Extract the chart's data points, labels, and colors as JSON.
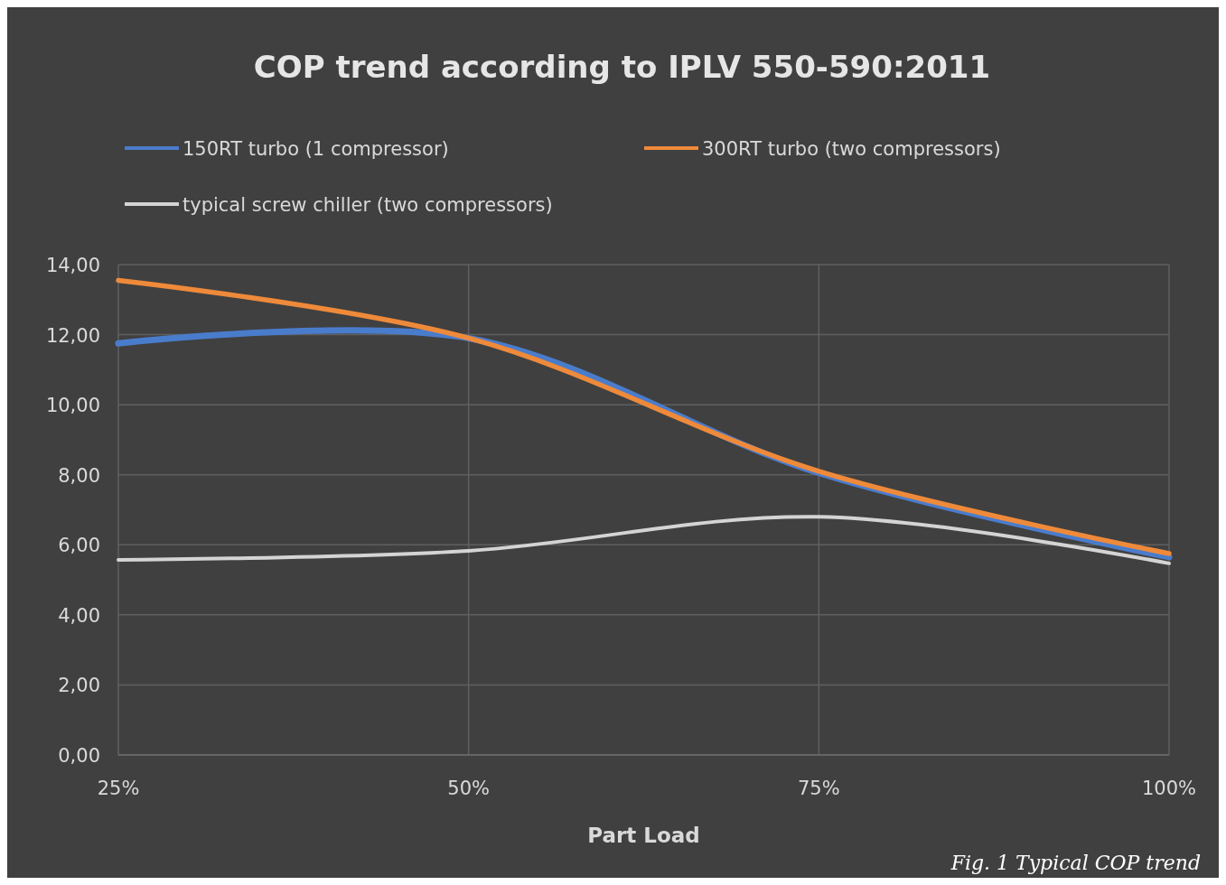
{
  "chart_data": {
    "type": "line",
    "title": "COP trend according to IPLV 550-590:2011",
    "xlabel": "Part Load",
    "categories": [
      "25%",
      "50%",
      "75%",
      "100%"
    ],
    "series": [
      {
        "name": "150RT turbo (1 compressor)",
        "color": "#4a7ccc",
        "values": [
          11.75,
          11.9,
          8.05,
          5.65
        ]
      },
      {
        "name": "300RT turbo (two compressors)",
        "color": "#ee8a3a",
        "values": [
          13.55,
          11.9,
          8.1,
          5.75
        ]
      },
      {
        "name": "typical screw chiller (two compressors)",
        "color": "#d4d4d4",
        "values": [
          5.57,
          5.83,
          6.8,
          5.47
        ]
      }
    ],
    "ylim": [
      0,
      14
    ],
    "yticks": [
      {
        "value": 0,
        "label": "0,00"
      },
      {
        "value": 2,
        "label": "2,00"
      },
      {
        "value": 4,
        "label": "4,00"
      },
      {
        "value": 6,
        "label": "6,00"
      },
      {
        "value": 8,
        "label": "8,00"
      },
      {
        "value": 10,
        "label": "10,00"
      },
      {
        "value": 12,
        "label": "12,00"
      },
      {
        "value": 14,
        "label": "14,00"
      }
    ],
    "grid": true,
    "legend": "top",
    "marker": "none",
    "line_style": "solid",
    "annotations": [
      "Fig. 1 Typical COP trend"
    ]
  }
}
